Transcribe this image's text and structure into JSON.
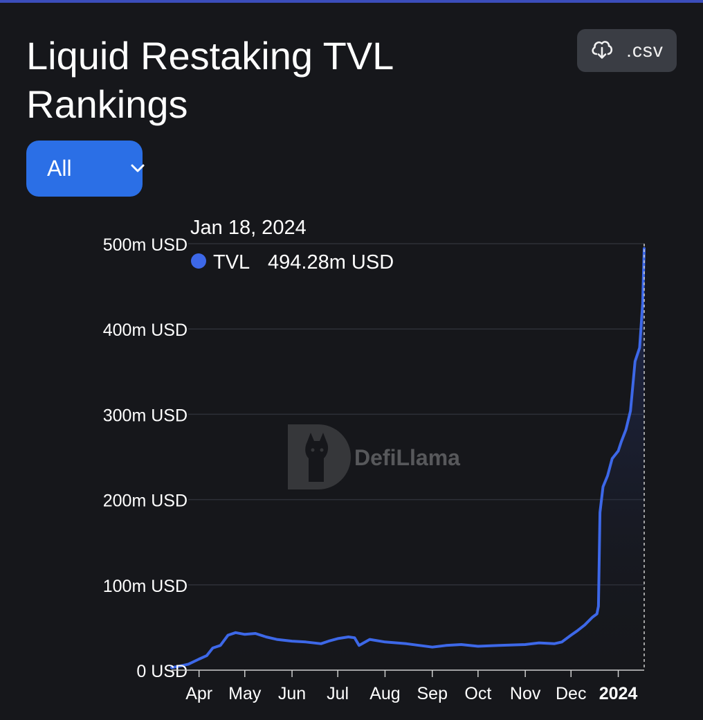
{
  "header": {
    "title": "Liquid Restaking TVL Rankings",
    "csv_label": ".csv",
    "csv_icon": "cloud-download-icon",
    "filter_label": "All",
    "filter_icon": "chevron-down-icon"
  },
  "watermark": {
    "text": "DefiLlama",
    "icon": "llama-logo-icon"
  },
  "colors": {
    "background": "#16171b",
    "series": "#3d68e8",
    "accent": "#2b6fe6",
    "grid": "#2e3038"
  },
  "chart_data": {
    "type": "area",
    "x_range": [
      "2023-03-14",
      "2024-01-18"
    ],
    "yticks": [
      0,
      100,
      200,
      300,
      400,
      500
    ],
    "ytick_labels": [
      "0 USD",
      "100m USD",
      "200m USD",
      "300m USD",
      "400m USD",
      "500m USD"
    ],
    "ylim": [
      0,
      500
    ],
    "xtick_labels": [
      "Apr",
      "May",
      "Jun",
      "Jul",
      "Aug",
      "Sep",
      "Oct",
      "Nov",
      "Dec",
      "2024"
    ],
    "xtick_dates": [
      "2023-04-01",
      "2023-05-01",
      "2023-06-01",
      "2023-07-01",
      "2023-08-01",
      "2023-09-01",
      "2023-10-01",
      "2023-11-01",
      "2023-12-01",
      "2024-01-01"
    ],
    "grid": true,
    "series": [
      {
        "name": "TVL",
        "x": [
          "2023-03-14",
          "2023-03-20",
          "2023-03-25",
          "2023-04-01",
          "2023-04-06",
          "2023-04-10",
          "2023-04-15",
          "2023-04-20",
          "2023-04-25",
          "2023-05-01",
          "2023-05-08",
          "2023-05-15",
          "2023-05-22",
          "2023-06-01",
          "2023-06-10",
          "2023-06-20",
          "2023-06-25",
          "2023-07-01",
          "2023-07-08",
          "2023-07-12",
          "2023-07-15",
          "2023-07-22",
          "2023-08-01",
          "2023-08-15",
          "2023-09-01",
          "2023-09-10",
          "2023-09-20",
          "2023-10-01",
          "2023-10-15",
          "2023-11-01",
          "2023-11-10",
          "2023-11-20",
          "2023-11-25",
          "2023-12-01",
          "2023-12-05",
          "2023-12-10",
          "2023-12-15",
          "2023-12-18",
          "2023-12-19",
          "2023-12-20",
          "2023-12-22",
          "2023-12-25",
          "2023-12-28",
          "2024-01-01",
          "2024-01-03",
          "2024-01-06",
          "2024-01-09",
          "2024-01-12",
          "2024-01-15",
          "2024-01-17",
          "2024-01-18"
        ],
        "values": [
          3,
          5,
          7,
          13,
          17,
          26,
          29,
          41,
          44,
          42,
          43,
          39,
          36,
          34,
          33,
          31,
          34,
          37,
          39,
          38,
          29,
          36,
          33,
          31,
          27,
          29,
          30,
          28,
          29,
          30,
          32,
          31,
          33,
          41,
          46,
          53,
          62,
          66,
          75,
          185,
          215,
          228,
          248,
          257,
          268,
          282,
          304,
          362,
          378,
          430,
          494.28
        ]
      }
    ],
    "tooltip": {
      "date": "Jan 18, 2024",
      "series": "TVL",
      "value": "494.28m USD"
    }
  }
}
